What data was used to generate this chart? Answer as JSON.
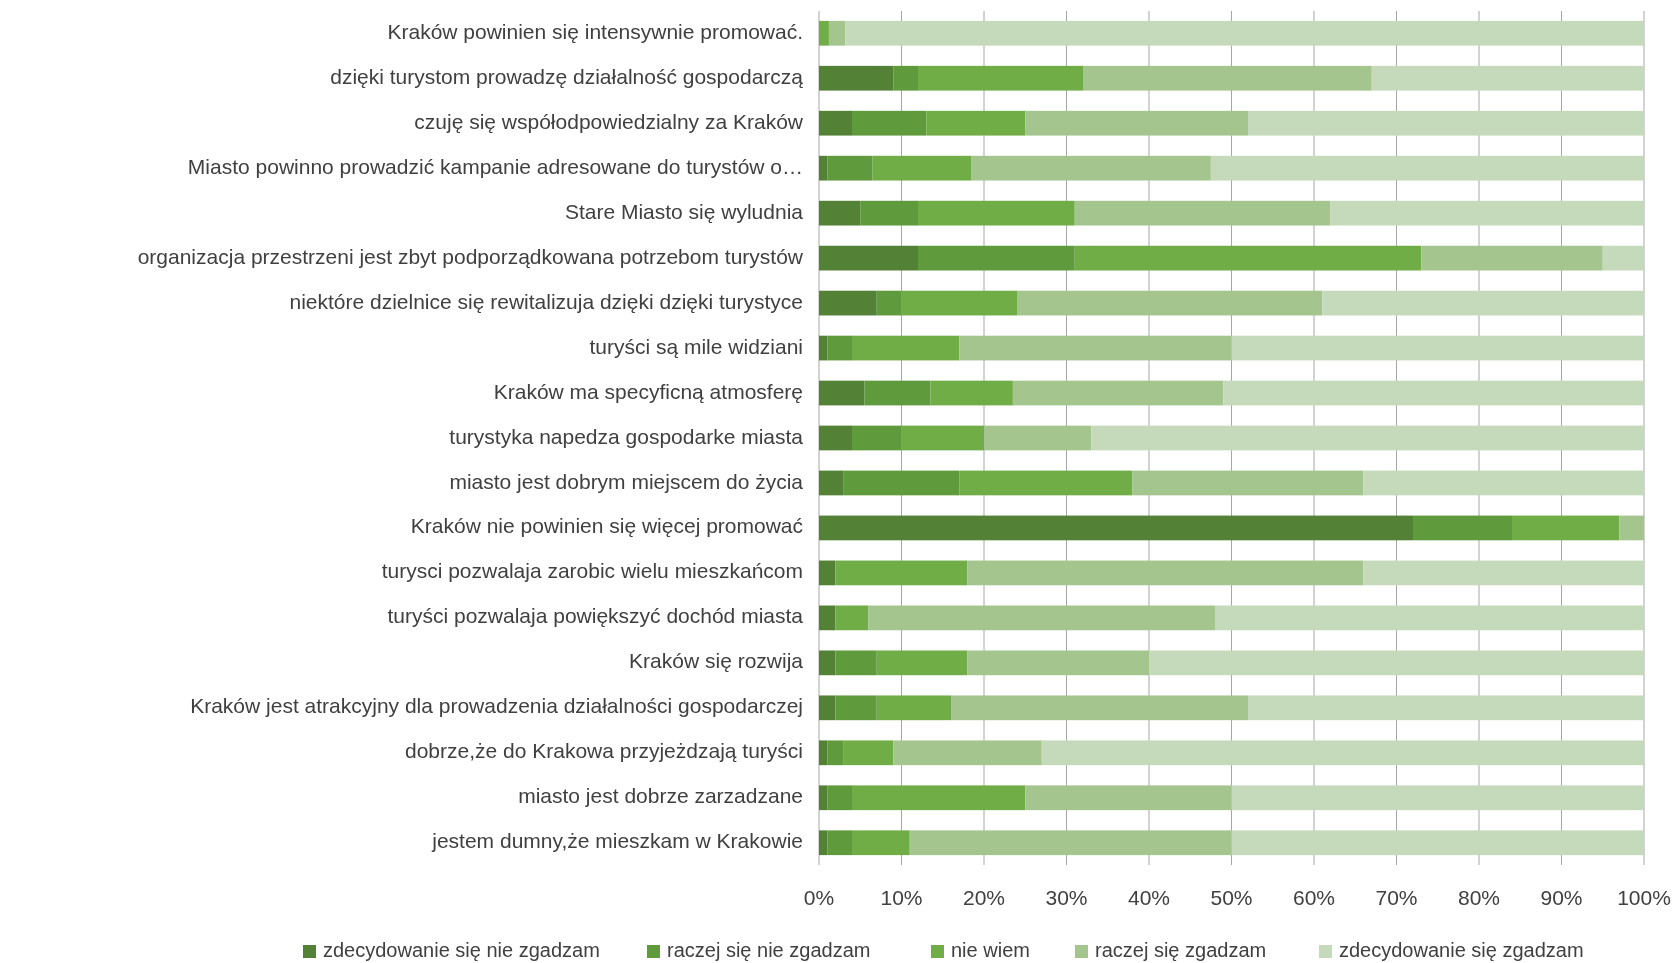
{
  "chart_data": {
    "type": "bar",
    "orientation": "horizontal",
    "stacked": true,
    "categories": [
      "Kraków powinien się intensywnie promować.",
      "dzięki turystom prowadzę działalność gospodarczą",
      "czuję się współodpowiedzialny za Kraków",
      "Miasto powinno prowadzić kampanie adresowane do turystów o…",
      "Stare Miasto się wyludnia",
      "organizacja przestrzeni jest zbyt podporządkowana potrzebom turystów",
      "niektóre dzielnice się rewitalizuja dzięki dzięki turystyce",
      "turyści są mile widziani",
      "Kraków ma specyficną atmosferę",
      "turystyka napedza gospodarke miasta",
      "miasto jest dobrym miejscem do życia",
      "Kraków nie powinien się więcej promować",
      "turysci pozwalaja zarobic wielu mieszkańcom",
      "turyści pozwalaja powiększyć dochód miasta",
      "Kraków się rozwija",
      "Kraków jest atrakcyjny dla prowadzenia działalności gospodarczej",
      "dobrze,że do Krakowa przyjeżdzają turyści",
      "miasto jest dobrze zarzadzane",
      "jestem dumny,że mieszkam w Krakowie"
    ],
    "series": [
      {
        "name": "zdecydowanie się nie zgadzam",
        "color": "#538135",
        "values": [
          0,
          9,
          4,
          1,
          5,
          12,
          7,
          1,
          5.5,
          4,
          3,
          72,
          2,
          2,
          2,
          2,
          1,
          1,
          1
        ]
      },
      {
        "name": "raczej się nie zgadzam",
        "color": "#5f9a3d",
        "values": [
          0,
          3,
          9,
          5.5,
          7,
          19,
          3,
          3,
          8,
          6,
          14,
          12,
          0,
          0,
          5,
          5,
          2,
          3,
          3
        ]
      },
      {
        "name": "nie wiem",
        "color": "#70ad47",
        "values": [
          1.2,
          20,
          12,
          12,
          19,
          42,
          14,
          13,
          10,
          10,
          21,
          13,
          16,
          4,
          11,
          9,
          6,
          21,
          7
        ]
      },
      {
        "name": "raczej się zgadzam",
        "color": "#a4c58e",
        "values": [
          2,
          35,
          27,
          29,
          31,
          22,
          37,
          33,
          25.5,
          13,
          28,
          3,
          48,
          42,
          22,
          36,
          18,
          25,
          39
        ]
      },
      {
        "name": "zdecydowanie się zgadzam",
        "color": "#c5dabb",
        "values": [
          96.8,
          33,
          48,
          52.5,
          38,
          5,
          39,
          50,
          51,
          67,
          34,
          0,
          34,
          52,
          60,
          48,
          73,
          50,
          50
        ]
      }
    ],
    "xlim": [
      0,
      100
    ],
    "xticks": [
      {
        "value": 0,
        "label": "0%"
      },
      {
        "value": 10,
        "label": "10%"
      },
      {
        "value": 20,
        "label": "20%"
      },
      {
        "value": 30,
        "label": "30%"
      },
      {
        "value": 40,
        "label": "40%"
      },
      {
        "value": 50,
        "label": "50%"
      },
      {
        "value": 60,
        "label": "60%"
      },
      {
        "value": 70,
        "label": "70%"
      },
      {
        "value": 80,
        "label": "80%"
      },
      {
        "value": 90,
        "label": "90%"
      },
      {
        "value": 100,
        "label": "100%"
      }
    ],
    "grid": "x",
    "legend": "bottom"
  }
}
